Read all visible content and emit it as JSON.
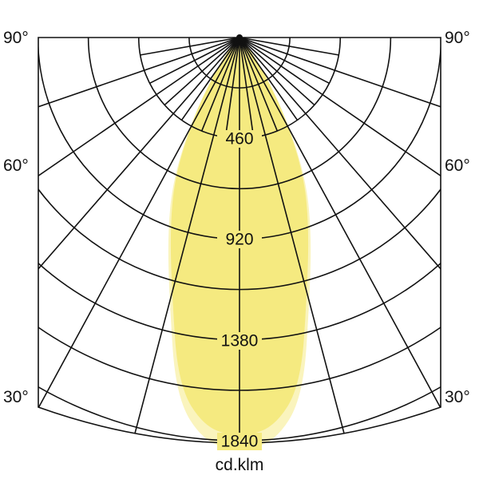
{
  "chart_data": {
    "type": "polar",
    "title": "",
    "unit_label": "cd.klm",
    "radial_range": [
      0,
      1840
    ],
    "ring_step": 230,
    "ring_labels": [
      "460",
      "920",
      "1380",
      "1840"
    ],
    "angle_labels": {
      "left": [
        "90°",
        "60°",
        "30°"
      ],
      "right": [
        "90°",
        "60°",
        "30°"
      ]
    },
    "grid": true,
    "series": [
      {
        "angles_deg": [
          0,
          5,
          10,
          15,
          20,
          25,
          30,
          35,
          40,
          45,
          50,
          60,
          70,
          80,
          90
        ],
        "values": [
          1830,
          1800,
          1620,
          1200,
          930,
          700,
          420,
          200,
          80,
          20,
          0,
          0,
          0,
          0,
          0
        ],
        "color": "#f5ea80",
        "halo_color": "#faf4bd"
      }
    ]
  }
}
